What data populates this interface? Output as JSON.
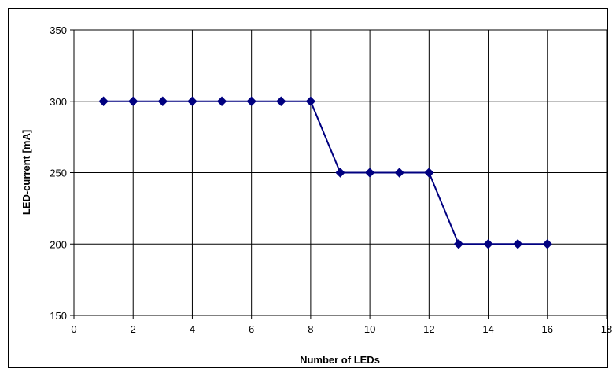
{
  "chart_data": {
    "type": "line",
    "title": "",
    "xlabel": "Number of LEDs",
    "ylabel": "LED-current [mA]",
    "xlim": [
      0,
      18
    ],
    "ylim": [
      150,
      350
    ],
    "xticks": [
      0,
      2,
      4,
      6,
      8,
      10,
      12,
      14,
      16,
      18
    ],
    "yticks": [
      150,
      200,
      250,
      300,
      350
    ],
    "grid": true,
    "legend": "none",
    "series": [
      {
        "color": "#000080",
        "marker": "diamond",
        "x": [
          1,
          2,
          3,
          4,
          5,
          6,
          7,
          8,
          9,
          10,
          11,
          12,
          13,
          14,
          15,
          16
        ],
        "y": [
          300,
          300,
          300,
          300,
          300,
          300,
          300,
          300,
          250,
          250,
          250,
          250,
          200,
          200,
          200,
          200
        ]
      }
    ]
  }
}
